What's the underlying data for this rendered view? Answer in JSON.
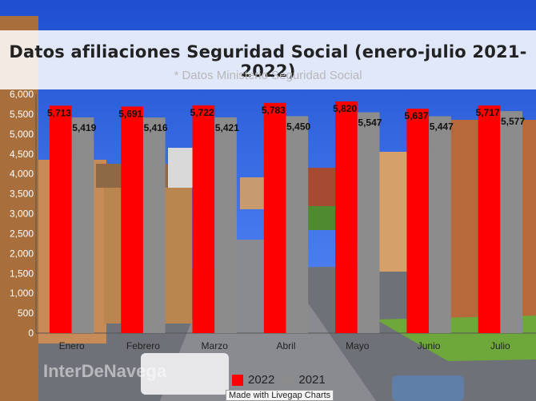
{
  "chart_data": {
    "type": "bar",
    "title": "Datos afiliaciones Seguridad Social (enero-julio 2021-2022)",
    "subtitle": "* Datos Ministerio Seguridad Social",
    "categories": [
      "Enero",
      "Febrero",
      "Marzo",
      "Abril",
      "Mayo",
      "Junio",
      "Julio"
    ],
    "series": [
      {
        "name": "2022",
        "color": "#ff0000",
        "values": [
          5713,
          5691,
          5722,
          5783,
          5820,
          5637,
          5717
        ],
        "labels": [
          "5,713",
          "5,691",
          "5,722",
          "5,783",
          "5,820",
          "5,637",
          "5,717"
        ]
      },
      {
        "name": "2021",
        "color": "#8c8c8c",
        "values": [
          5419,
          5416,
          5421,
          5450,
          5547,
          5447,
          5577
        ],
        "labels": [
          "5,419",
          "5,416",
          "5,421",
          "5,450",
          "5,547",
          "5,447",
          "5,577"
        ]
      }
    ],
    "ylim": [
      0,
      6000
    ],
    "yticks": [
      "0",
      "500",
      "1,000",
      "1,500",
      "2,000",
      "2,500",
      "3,000",
      "3,500",
      "4,000",
      "4,500",
      "5,000",
      "5,500",
      "6,000"
    ],
    "xlabel": "",
    "ylabel": "",
    "legend_position": "bottom",
    "grid": false
  },
  "watermark": "InterDeNavega",
  "credit": "Made with Livegap Charts"
}
